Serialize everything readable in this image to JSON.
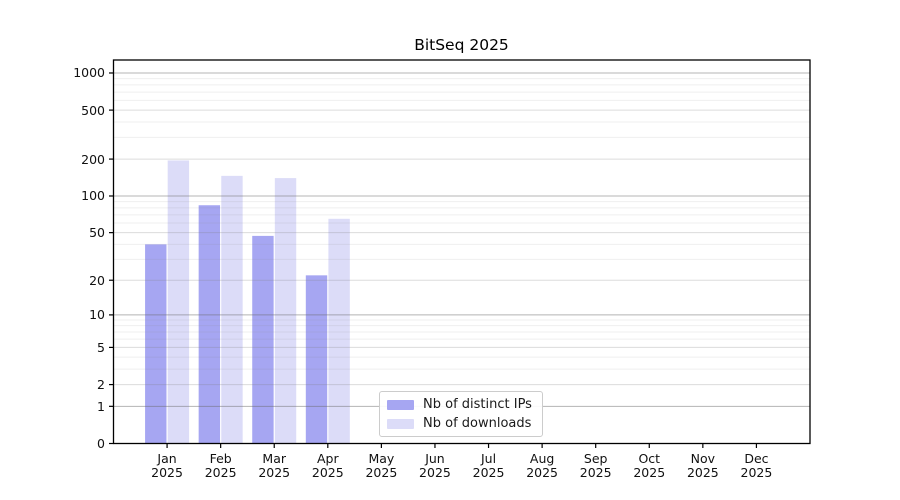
{
  "chart_data": {
    "type": "bar",
    "title": "BitSeq 2025",
    "year_label": "2025",
    "categories": [
      "Jan",
      "Feb",
      "Mar",
      "Apr",
      "May",
      "Jun",
      "Jul",
      "Aug",
      "Sep",
      "Oct",
      "Nov",
      "Dec"
    ],
    "series": [
      {
        "name": "Nb of distinct IPs",
        "color": "#a6a6f2",
        "values": [
          40,
          84,
          47,
          22,
          0,
          0,
          0,
          0,
          0,
          0,
          0,
          0
        ]
      },
      {
        "name": "Nb of downloads",
        "color": "#dcdcf8",
        "values": [
          195,
          146,
          140,
          65,
          0,
          0,
          0,
          0,
          0,
          0,
          0,
          0
        ]
      }
    ],
    "xlabel": "",
    "ylabel": "",
    "yscale": "symlog (y = log(1+v))",
    "yticks": [
      0,
      1,
      2,
      5,
      10,
      20,
      50,
      100,
      200,
      500,
      1000
    ],
    "ylim": [
      0,
      1275
    ],
    "grid": "horizontal, log minor + major gridlines drawn above bars",
    "legend_position": "inside axes, bottom center",
    "colors": {
      "major_gridline": "rgba(105,105,105,0.50)",
      "labeled_minor_gridline": "rgba(130,130,130,0.28)",
      "minor_gridline": "rgba(130,130,130,0.13)",
      "spine": "#000000"
    }
  }
}
